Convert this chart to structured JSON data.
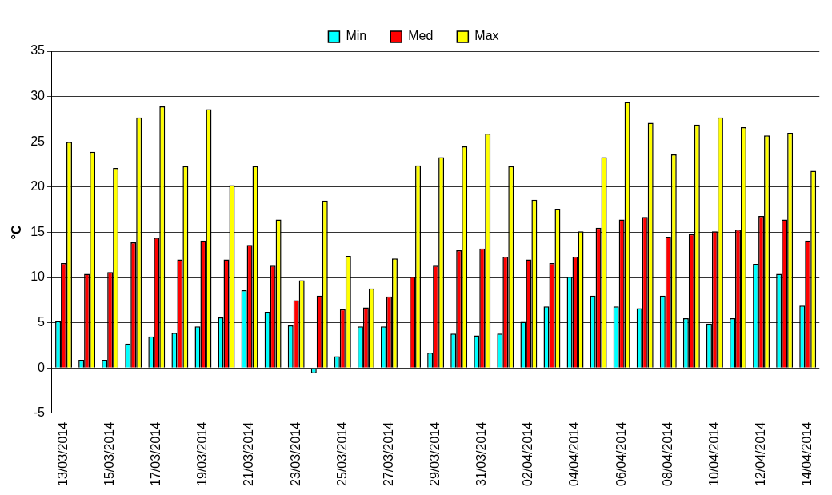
{
  "chart_data": {
    "type": "bar",
    "ylabel": "°C",
    "categories": [
      "13/03/2014",
      null,
      "15/03/2014",
      null,
      "17/03/2014",
      null,
      "19/03/2014",
      null,
      "21/03/2014",
      null,
      "23/03/2014",
      null,
      "25/03/2014",
      null,
      "27/03/2014",
      null,
      "29/03/2014",
      null,
      "31/03/2014",
      null,
      "02/04/2014",
      null,
      "04/04/2014",
      null,
      "06/04/2014",
      null,
      "08/04/2014",
      null,
      "10/04/2014",
      null,
      "12/04/2014",
      null,
      "14/04/2014"
    ],
    "series": [
      {
        "name": "Min",
        "color": "#00ffff",
        "values": [
          5.2,
          0.9,
          0.9,
          2.7,
          3.5,
          3.9,
          4.6,
          5.6,
          8.6,
          6.2,
          4.7,
          -0.6,
          1.3,
          4.6,
          4.6,
          0,
          1.7,
          3.8,
          3.6,
          3.8,
          5.1,
          6.8,
          10.1,
          8.0,
          6.8,
          6.6,
          8.0,
          5.5,
          4.9,
          5.5,
          11.5,
          10.4,
          6.9
        ]
      },
      {
        "name": "Med",
        "color": "#ff0000",
        "values": [
          11.6,
          10.4,
          10.6,
          13.9,
          14.4,
          12.0,
          14.1,
          12.0,
          13.6,
          11.3,
          7.5,
          8.0,
          6.5,
          6.7,
          7.9,
          10.1,
          11.3,
          13.0,
          13.2,
          12.3,
          12.0,
          11.6,
          12.3,
          15.5,
          16.4,
          16.7,
          14.5,
          14.8,
          15.1,
          15.3,
          16.8,
          16.4,
          14.1
        ]
      },
      {
        "name": "Max",
        "color": "#ffff00",
        "values": [
          25.0,
          23.9,
          22.1,
          27.7,
          28.9,
          22.3,
          28.6,
          20.2,
          22.3,
          16.4,
          9.7,
          18.5,
          12.4,
          8.8,
          12.1,
          22.4,
          23.3,
          24.5,
          25.9,
          22.3,
          18.6,
          17.6,
          15.1,
          23.3,
          29.4,
          27.1,
          23.6,
          26.9,
          27.7,
          26.6,
          25.7,
          26.0,
          21.8
        ]
      }
    ],
    "ylim": [
      -5,
      35
    ],
    "yticks": [
      -5,
      0,
      5,
      10,
      15,
      20,
      25,
      30,
      35
    ],
    "grid": "y",
    "legend": "top"
  }
}
